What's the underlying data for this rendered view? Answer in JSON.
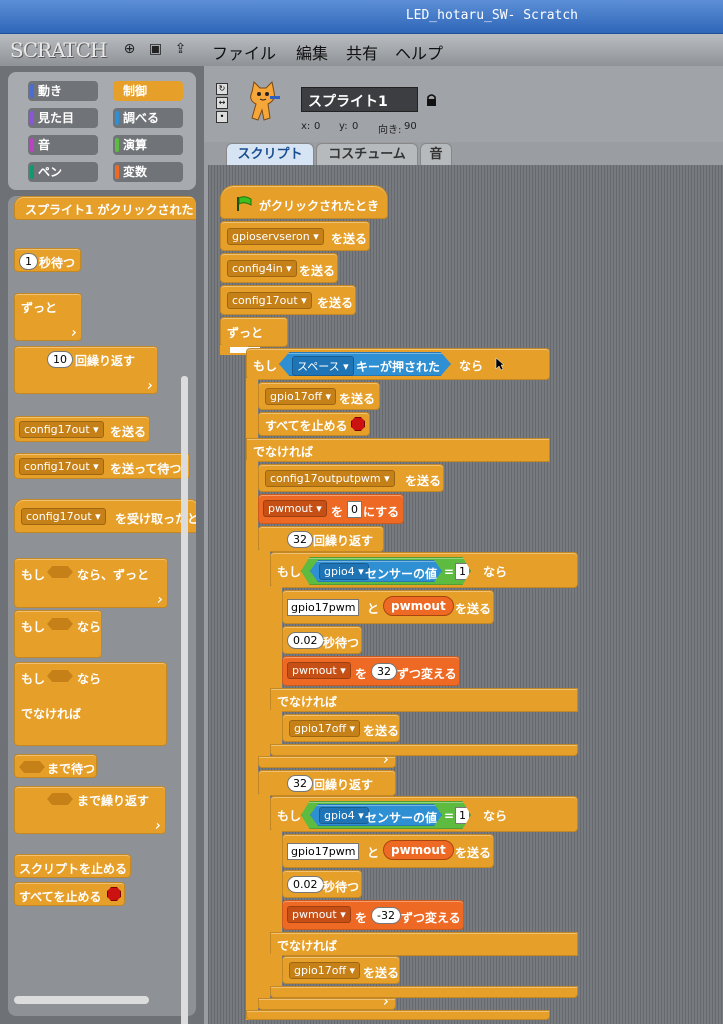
{
  "window": {
    "title": "LED_hotaru_SW- Scratch"
  },
  "menubar": {
    "logo": "SCRATCH",
    "menus": [
      "ファイル",
      "編集",
      "共有",
      "ヘルプ"
    ]
  },
  "categories": [
    {
      "label": "動き",
      "color": "#4a6cd4"
    },
    {
      "label": "制御",
      "color": "#e6a02a"
    },
    {
      "label": "見た目",
      "color": "#8a55d7"
    },
    {
      "label": "調べる",
      "color": "#2f8fd3"
    },
    {
      "label": "音",
      "color": "#bb42c3"
    },
    {
      "label": "演算",
      "color": "#5dbb3f"
    },
    {
      "label": "ペン",
      "color": "#0e9a6c"
    },
    {
      "label": "変数",
      "color": "#ee6a24"
    }
  ],
  "palette": {
    "b1": "スプライト1 がクリックされた",
    "b2_num": "1",
    "b2": "秒待つ",
    "b3": "ずっと",
    "b4_num": "10",
    "b4": "回繰り返す",
    "b5_dd": "config17out",
    "b5": "を送る",
    "b6_dd": "config17out",
    "b6": "を送って待つ",
    "b7_dd": "config17out",
    "b7": "を受け取ったと",
    "b8a": "もし",
    "b8b": "なら、ずっと",
    "b9a": "もし",
    "b9b": "なら",
    "b10a": "もし",
    "b10b": "なら",
    "b10c": "でなければ",
    "b11": "まで待つ",
    "b12": "まで繰り返す",
    "b13": "スクリプトを止める",
    "b14": "すべてを止める"
  },
  "sprite": {
    "name": "スプライト1",
    "x_label": "x:",
    "x": "0",
    "y_label": "y:",
    "y": "0",
    "dir_label": "向き:",
    "dir": "90"
  },
  "tabs": [
    "スクリプト",
    "コスチューム",
    "音"
  ],
  "script": {
    "hat": "がクリックされたとき",
    "s1_dd": "gpioservseron",
    "send": "を送る",
    "s2_dd": "config4in",
    "s3_dd": "config17out",
    "forever": "ずっと",
    "if": "もし",
    "key_dd": "スペース",
    "key": "キーが押された",
    "then": "なら",
    "s4_dd": "gpio17off",
    "stopall": "すべてを止める",
    "else": "でなければ",
    "s5_dd": "config17outputpwm",
    "set_dd": "pwmout",
    "set_to": "を",
    "set_val": "0",
    "set_tail": "にする",
    "rep1_num": "32",
    "repeat": "回繰り返す",
    "sensor_dd": "gpio4",
    "sensor": "センサーの値",
    "eq": "=",
    "eq_val": "1",
    "join_text": "gpio17pwm",
    "join": "と",
    "pwm_var": "pwmout",
    "wait_val": "0.02",
    "wait": "秒待つ",
    "chg_dd": "pwmout",
    "chg_to": "を",
    "chg_val1": "32",
    "chg_tail": "ずつ変える",
    "off_dd": "gpio17off",
    "rep2_num": "32",
    "chg_val2": "-32"
  }
}
